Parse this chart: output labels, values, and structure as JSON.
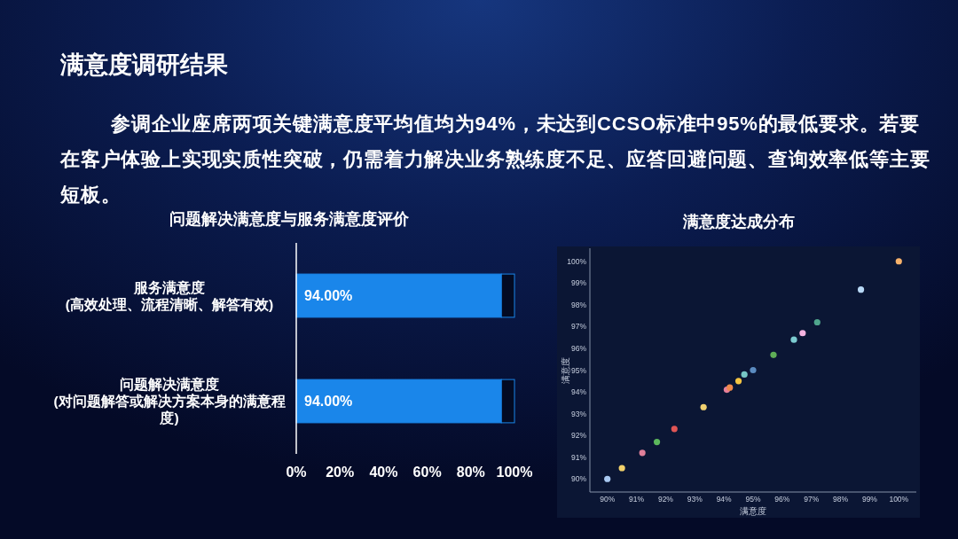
{
  "chart_data": [
    {
      "type": "other",
      "title": "满意度调研结果",
      "subtitle": "参调企业座席两项关键满意度平均值均为94%，未达到CCSO标准中95%的最低要求。若要在客户体验上实现实质性突破，仍需着力解决业务熟练度不足、应答回避问题、查询效率低等主要短板。"
    },
    {
      "type": "bar",
      "title": "问题解决满意度与服务满意度评价",
      "orientation": "horizontal",
      "stacked": true,
      "categories": [
        "服务满意度(高效处理、流程清晰、解答有效)",
        "问题解决满意度(对问题解答或解决方案本身的满意程度)"
      ],
      "series": [
        {
          "color": "#1a86ea",
          "values": [
            94,
            94
          ],
          "value_labels": [
            "94.00%",
            "94.00%"
          ]
        },
        {
          "color": "#030a22",
          "values": [
            6,
            6
          ]
        }
      ],
      "xlim": [
        0,
        100
      ],
      "xticks": [
        {
          "value": 0,
          "label": "0%"
        },
        {
          "value": 20,
          "label": "20%"
        },
        {
          "value": 40,
          "label": "40%"
        },
        {
          "value": 60,
          "label": "60%"
        },
        {
          "value": 80,
          "label": "80%"
        },
        {
          "value": 100,
          "label": "100%"
        }
      ]
    },
    {
      "type": "scatter",
      "title": "满意度达成分布",
      "xlabel": "满意度",
      "ylabel": "满意度",
      "marker": "circle",
      "x": [
        90.0,
        90.5,
        91.2,
        91.7,
        92.3,
        93.3,
        94.1,
        94.2,
        94.5,
        94.7,
        95.0,
        95.7,
        96.4,
        96.7,
        97.2,
        98.7,
        100.0
      ],
      "series": [
        {
          "values": [
            90.0,
            90.5,
            91.2,
            91.7,
            92.3,
            93.3,
            94.1,
            94.2,
            94.5,
            94.8,
            95.0,
            95.7,
            96.4,
            96.7,
            97.2,
            98.7,
            100.0
          ],
          "colors": [
            "#a9c9f2",
            "#f2d16b",
            "#e0809a",
            "#5cb85c",
            "#e05555",
            "#f0d070",
            "#e8809a",
            "#f08a4b",
            "#f5c542",
            "#76c6c6",
            "#5b8bc0",
            "#5fae57",
            "#7ccbd0",
            "#f4b3e0",
            "#4fa58c",
            "#b8d8f5",
            "#f7b26b"
          ]
        }
      ],
      "xlim": [
        89.4,
        100.6
      ],
      "ylim": [
        89.4,
        100.6
      ],
      "xticks": [
        {
          "value": 90,
          "label": "90%"
        },
        {
          "value": 91,
          "label": "91%"
        },
        {
          "value": 92,
          "label": "92%"
        },
        {
          "value": 93,
          "label": "93%"
        },
        {
          "value": 94,
          "label": "94%"
        },
        {
          "value": 95,
          "label": "95%"
        },
        {
          "value": 96,
          "label": "96%"
        },
        {
          "value": 97,
          "label": "97%"
        },
        {
          "value": 98,
          "label": "98%"
        },
        {
          "value": 99,
          "label": "99%"
        },
        {
          "value": 100,
          "label": "100%"
        }
      ],
      "yticks": [
        {
          "value": 90,
          "label": "90%"
        },
        {
          "value": 91,
          "label": "91%"
        },
        {
          "value": 92,
          "label": "92%"
        },
        {
          "value": 93,
          "label": "93%"
        },
        {
          "value": 94,
          "label": "94%"
        },
        {
          "value": 95,
          "label": "95%"
        },
        {
          "value": 96,
          "label": "96%"
        },
        {
          "value": 97,
          "label": "97%"
        },
        {
          "value": 98,
          "label": "98%"
        },
        {
          "value": 99,
          "label": "99%"
        },
        {
          "value": 100,
          "label": "100%"
        }
      ]
    }
  ]
}
